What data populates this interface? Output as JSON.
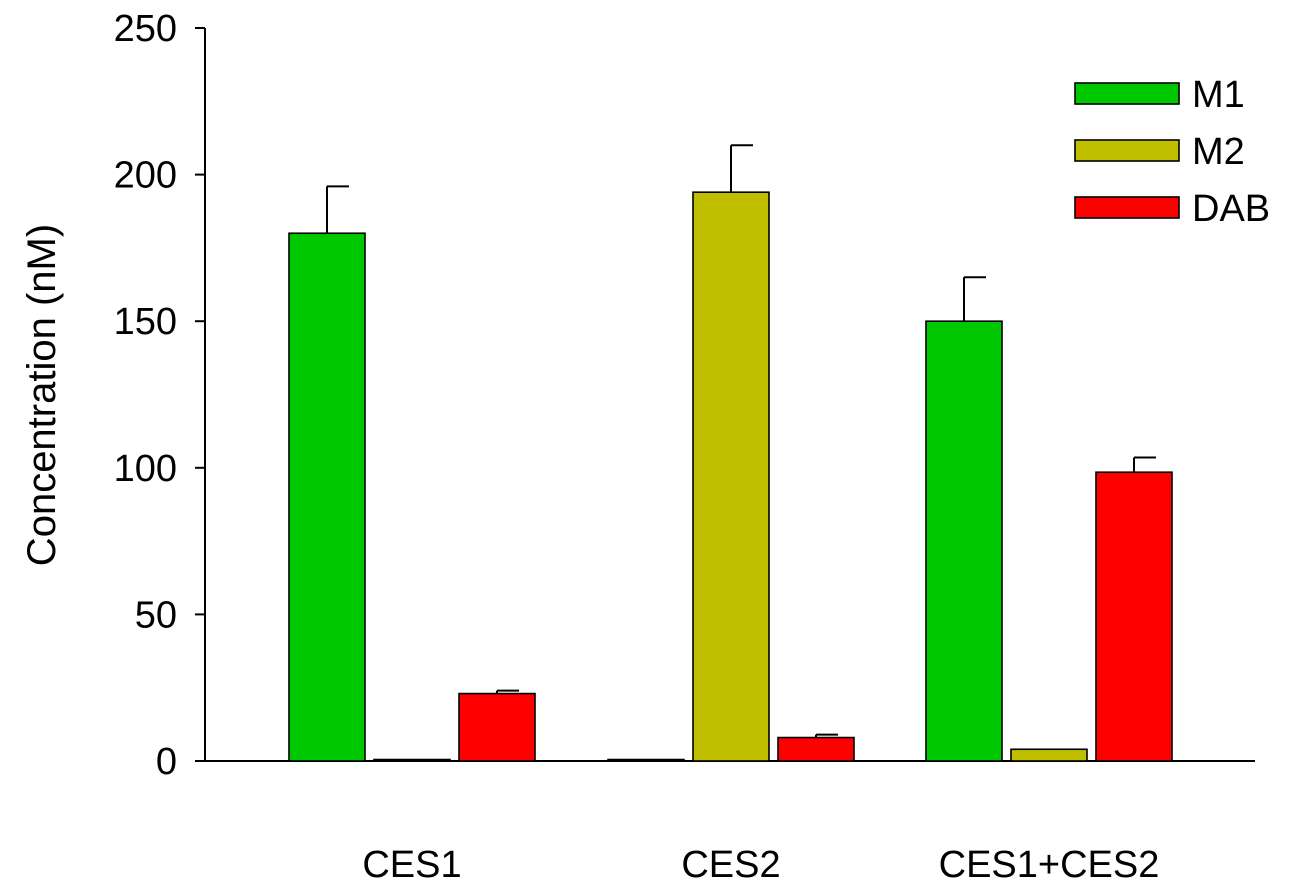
{
  "chart_data": {
    "type": "bar",
    "title": "",
    "xlabel": "",
    "ylabel": "Concentration (nM)",
    "ylim": [
      0,
      250
    ],
    "yticks": [
      0,
      50,
      100,
      150,
      200,
      250
    ],
    "grid": false,
    "legend_position": "top-right",
    "categories": [
      "CES1",
      "CES2",
      "CES1+CES2"
    ],
    "series": [
      {
        "name": "M1",
        "color": "#00c800",
        "values": [
          180,
          0.5,
          150
        ],
        "errors": [
          16,
          0,
          15
        ]
      },
      {
        "name": "M2",
        "color": "#bfbf00",
        "values": [
          0.5,
          194,
          4
        ],
        "errors": [
          0,
          16,
          0
        ]
      },
      {
        "name": "DAB",
        "color": "#ff0000",
        "values": [
          23,
          8,
          98.5
        ],
        "errors": [
          1,
          1,
          5
        ]
      }
    ]
  }
}
